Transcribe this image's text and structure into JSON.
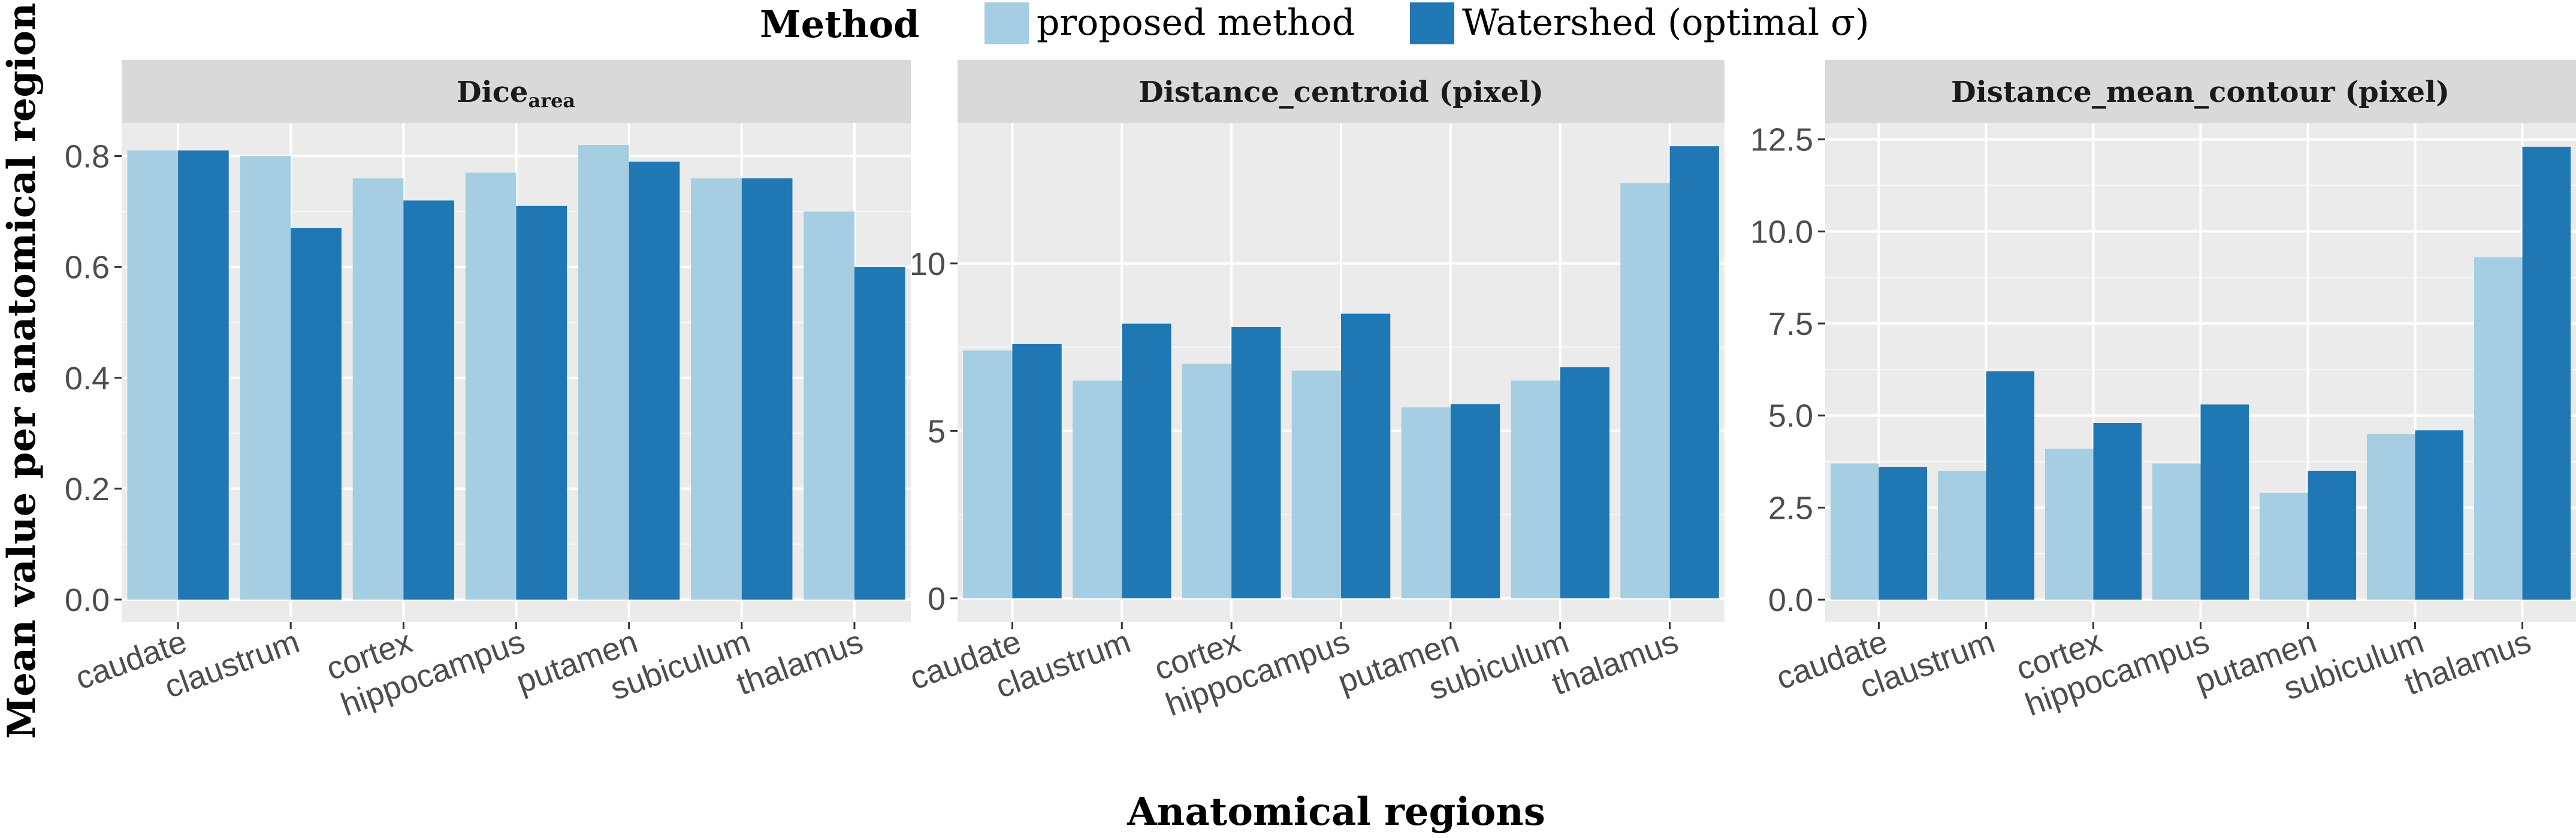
{
  "legend": {
    "title": "Method",
    "items": [
      {
        "label": "proposed method",
        "color": "#a6cee3"
      },
      {
        "label": "Watershed (optimal σ)",
        "color": "#1f78b4"
      }
    ]
  },
  "axes": {
    "ylabel": "Mean value per anatomical region",
    "xlabel": "Anatomical regions"
  },
  "chart_data": [
    {
      "type": "bar",
      "title": "Dice",
      "title_subscript": "area",
      "categories": [
        "caudate",
        "claustrum",
        "cortex",
        "hippocampus",
        "putamen",
        "subiculum",
        "thalamus"
      ],
      "series": [
        {
          "name": "proposed method",
          "values": [
            0.81,
            0.8,
            0.76,
            0.77,
            0.82,
            0.76,
            0.7
          ]
        },
        {
          "name": "Watershed (optimal σ)",
          "values": [
            0.81,
            0.67,
            0.72,
            0.71,
            0.79,
            0.76,
            0.6
          ]
        }
      ],
      "yticks": [
        0.0,
        0.2,
        0.4,
        0.6,
        0.8
      ],
      "ytick_labels": [
        "0.0",
        "0.2",
        "0.4",
        "0.6",
        "0.8"
      ],
      "ylim": [
        -0.04,
        0.86
      ],
      "grid": true
    },
    {
      "type": "bar",
      "title": "Distance_centroid (pixel)",
      "categories": [
        "caudate",
        "claustrum",
        "cortex",
        "hippocampus",
        "putamen",
        "subiculum",
        "thalamus"
      ],
      "series": [
        {
          "name": "proposed method",
          "values": [
            7.4,
            6.5,
            7.0,
            6.8,
            5.7,
            6.5,
            12.4
          ]
        },
        {
          "name": "Watershed (optimal σ)",
          "values": [
            7.6,
            8.2,
            8.1,
            8.5,
            5.8,
            6.9,
            13.5
          ]
        }
      ],
      "yticks": [
        0,
        5,
        10
      ],
      "ytick_labels": [
        "0",
        "5",
        "10"
      ],
      "ylim": [
        -0.7,
        14.2
      ],
      "grid": true
    },
    {
      "type": "bar",
      "title": "Distance_mean_contour (pixel)",
      "categories": [
        "caudate",
        "claustrum",
        "cortex",
        "hippocampus",
        "putamen",
        "subiculum",
        "thalamus"
      ],
      "series": [
        {
          "name": "proposed method",
          "values": [
            3.7,
            3.5,
            4.1,
            3.7,
            2.9,
            4.5,
            9.3
          ]
        },
        {
          "name": "Watershed (optimal σ)",
          "values": [
            3.6,
            6.2,
            4.8,
            5.3,
            3.5,
            4.6,
            12.3
          ]
        }
      ],
      "yticks": [
        0.0,
        2.5,
        5.0,
        7.5,
        10.0,
        12.5
      ],
      "ytick_labels": [
        "0.0",
        "2.5",
        "5.0",
        "7.5",
        "10.0",
        "12.5"
      ],
      "ylim": [
        -0.6,
        12.95
      ],
      "grid": true
    }
  ]
}
